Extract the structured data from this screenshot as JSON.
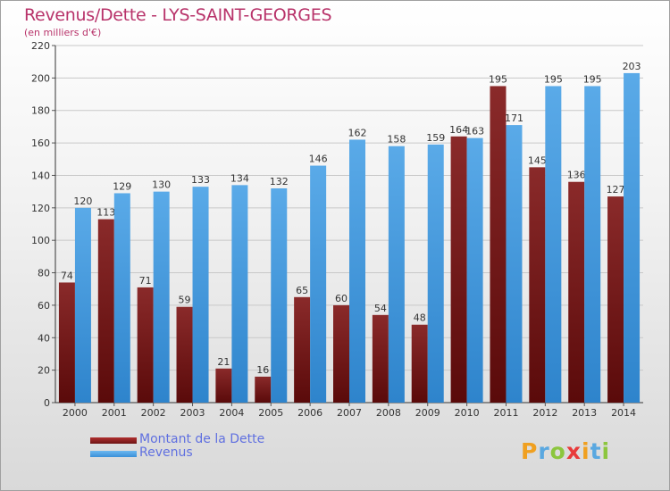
{
  "header": {
    "title": "Revenus/Dette - LYS-SAINT-GEORGES",
    "subtitle": "(en milliers d'€)"
  },
  "chart_data": {
    "type": "bar",
    "title": "Revenus/Dette - LYS-SAINT-GEORGES",
    "subtitle": "(en milliers d'€)",
    "categories": [
      "2000",
      "2001",
      "2002",
      "2003",
      "2004",
      "2005",
      "2006",
      "2007",
      "2008",
      "2009",
      "2010",
      "2011",
      "2012",
      "2013",
      "2014"
    ],
    "series": [
      {
        "name": "Montant de la Dette",
        "color": "#7a1010",
        "values": [
          74,
          113,
          71,
          59,
          21,
          16,
          65,
          60,
          54,
          48,
          164,
          195,
          145,
          136,
          127
        ]
      },
      {
        "name": "Revenus",
        "color": "#3a90d8",
        "values": [
          120,
          129,
          130,
          133,
          134,
          132,
          146,
          162,
          158,
          159,
          163,
          171,
          195,
          195,
          203
        ]
      }
    ],
    "ylim": [
      0,
      220
    ],
    "yticks": [
      0,
      20,
      40,
      60,
      80,
      100,
      120,
      140,
      160,
      180,
      200,
      220
    ],
    "grid": true,
    "legend": "bottom-left"
  },
  "legend": {
    "debt_label": "Montant de la Dette",
    "revenue_label": "Revenus",
    "debt_color": "#6e1414",
    "revenue_color": "#3a90d8"
  },
  "logo": {
    "letters": [
      "P",
      "r",
      "o",
      "x",
      "i",
      "t",
      "i"
    ],
    "colors": [
      "#f0a020",
      "#5aa8e0",
      "#8cc63e",
      "#e83a3a",
      "#f0a020",
      "#5aa8e0",
      "#8cc63e"
    ]
  }
}
